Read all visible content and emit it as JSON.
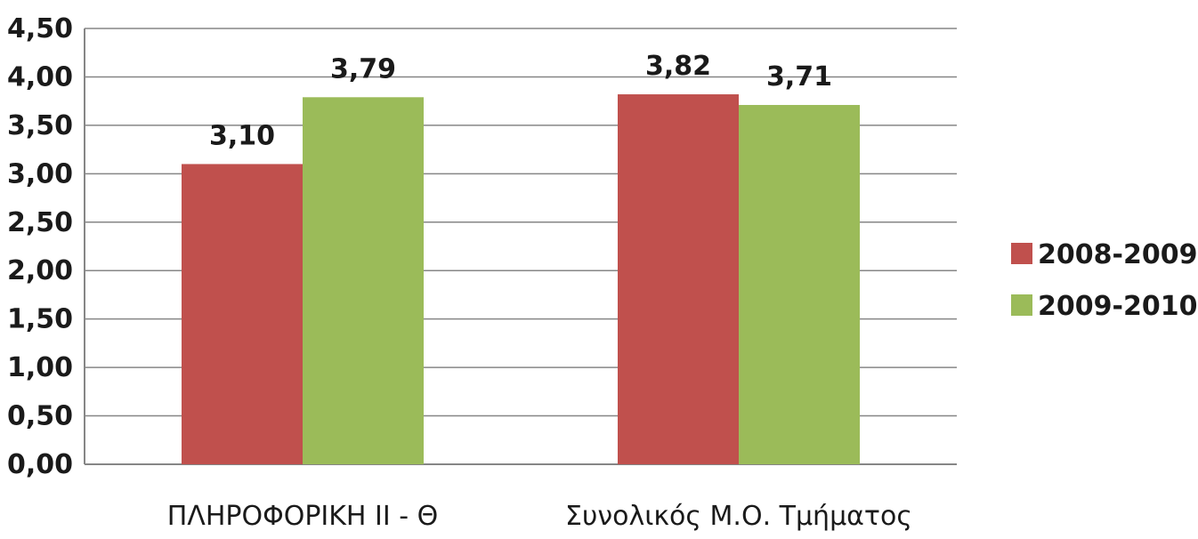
{
  "chart_data": {
    "type": "bar",
    "categories": [
      "ΠΛΗΡΟΦΟΡΙΚΗ ΙΙ - Θ",
      "Συνολικός Μ.Ο. Τμήματος"
    ],
    "series": [
      {
        "name": "2008-2009",
        "values": [
          3.1,
          3.82
        ],
        "labels": [
          "3,10",
          "3,82"
        ],
        "color": "#c0504d"
      },
      {
        "name": "2009-2010",
        "values": [
          3.79,
          3.71
        ],
        "labels": [
          "3,79",
          "3,71"
        ],
        "color": "#9bbb59"
      }
    ],
    "y_ticks": [
      "0,00",
      "0,50",
      "1,00",
      "1,50",
      "2,00",
      "2,50",
      "3,00",
      "3,50",
      "4,00",
      "4,50"
    ],
    "ylim": [
      0,
      4.5
    ],
    "grid": true,
    "legend_position": "right",
    "title": "",
    "xlabel": "",
    "ylabel": ""
  }
}
